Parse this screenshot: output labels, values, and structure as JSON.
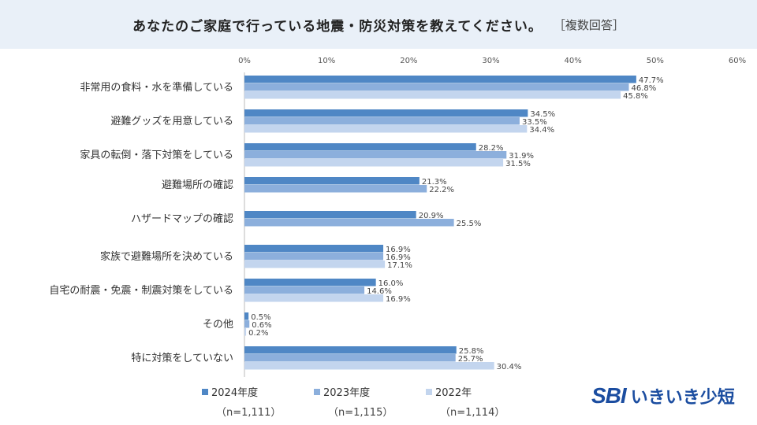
{
  "header": {
    "title": "あなたのご家庭で行っている地震・防災対策を教えてください。",
    "note": "［複数回答］"
  },
  "chart_data": {
    "type": "bar",
    "orientation": "horizontal",
    "title": "あなたのご家庭で行っている地震・防災対策を教えてください。",
    "categories": [
      "非常用の食料・水を準備している",
      "避難グッズを用意している",
      "家具の転倒・落下対策をしている",
      "避難場所の確認",
      "ハザードマップの確認",
      "家族で避難場所を決めている",
      "自宅の耐震・免震・制震対策をしている",
      "その他",
      "特に対策をしていない"
    ],
    "series": [
      {
        "name": "2024年度",
        "n": "（n=1,111）",
        "color": "#4f87c5",
        "values": [
          47.7,
          34.5,
          28.2,
          21.3,
          20.9,
          16.9,
          16.0,
          0.5,
          25.8
        ],
        "labels": [
          "47.7%",
          "34.5%",
          "28.2%",
          "21.3%",
          "20.9%",
          "16.9%",
          "16.0%",
          "0.5%",
          "25.8%"
        ]
      },
      {
        "name": "2023年度",
        "n": "（n=1,115）",
        "color": "#8cafdc",
        "values": [
          46.8,
          33.5,
          31.9,
          22.2,
          25.5,
          16.9,
          14.6,
          0.6,
          25.7
        ],
        "labels": [
          "46.8%",
          "33.5%",
          "31.9%",
          "22.2%",
          "25.5%",
          "16.9%",
          "14.6%",
          "0.6%",
          "25.7%"
        ]
      },
      {
        "name": "2022年",
        "n": "（n=1,114）",
        "color": "#c3d5ee",
        "values": [
          45.8,
          34.4,
          31.5,
          null,
          null,
          17.1,
          16.9,
          0.2,
          30.4
        ],
        "labels": [
          "45.8%",
          "34.4%",
          "31.5%",
          null,
          null,
          "17.1%",
          "16.9%",
          "0.2%",
          "30.4%"
        ]
      }
    ],
    "xlim": [
      0,
      60
    ],
    "xticks": [
      0,
      10,
      20,
      30,
      40,
      50,
      60
    ],
    "xtick_labels": [
      "0%",
      "10%",
      "20%",
      "30%",
      "40%",
      "50%",
      "60%"
    ],
    "legend_position": "bottom-left"
  },
  "logo": {
    "brand": "SBI",
    "name": "いきいき少短"
  }
}
